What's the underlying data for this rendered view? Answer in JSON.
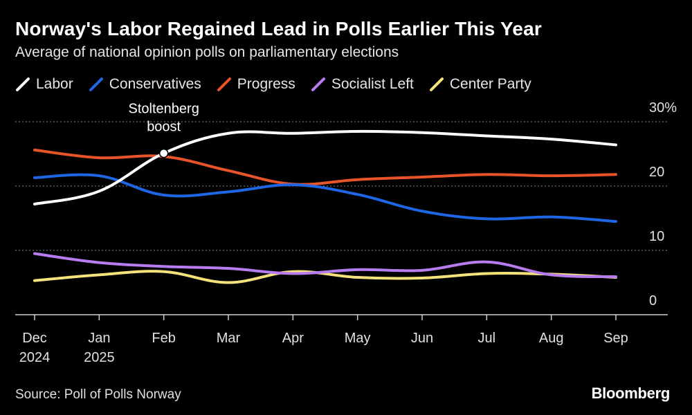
{
  "title": "Norway's Labor Regained Lead in Polls Earlier This Year",
  "subtitle": "Average of national opinion polls on parliamentary elections",
  "source": "Source: Poll of Polls Norway",
  "brand": "Bloomberg",
  "chart_data": {
    "type": "line",
    "x": [
      "Dec\n2024",
      "Jan\n2025",
      "Feb",
      "Mar",
      "Apr",
      "May",
      "Jun",
      "Jul",
      "Aug",
      "Sep"
    ],
    "y_ticks": [
      "30%",
      "20",
      "10",
      "0"
    ],
    "ylim": [
      0,
      30
    ],
    "grid": true,
    "legend": "top-left",
    "series": [
      {
        "name": "Labor",
        "color": "#ffffff",
        "values": [
          17.2,
          19.2,
          25.1,
          28.2,
          28.2,
          28.5,
          28.3,
          27.8,
          27.3,
          26.4
        ]
      },
      {
        "name": "Conservatives",
        "color": "#1f66e5",
        "values": [
          21.3,
          21.6,
          18.6,
          19.1,
          20.2,
          18.7,
          16.1,
          14.9,
          15.2,
          14.5
        ]
      },
      {
        "name": "Progress",
        "color": "#e8542a",
        "values": [
          25.6,
          24.4,
          24.6,
          22.4,
          20.3,
          21.0,
          21.4,
          21.8,
          21.6,
          21.8
        ]
      },
      {
        "name": "Socialist Left",
        "color": "#b77cf0",
        "values": [
          9.5,
          8.1,
          7.5,
          7.2,
          6.4,
          7.0,
          6.9,
          8.2,
          6.2,
          5.9
        ]
      },
      {
        "name": "Center Party",
        "color": "#f6e27a",
        "values": [
          5.3,
          6.2,
          6.7,
          5.0,
          6.7,
          5.8,
          5.7,
          6.4,
          6.3,
          5.8
        ]
      }
    ],
    "annotations": [
      {
        "text_lines": [
          "Stoltenberg",
          "boost"
        ],
        "series": "Labor",
        "x_index": 2
      }
    ]
  }
}
